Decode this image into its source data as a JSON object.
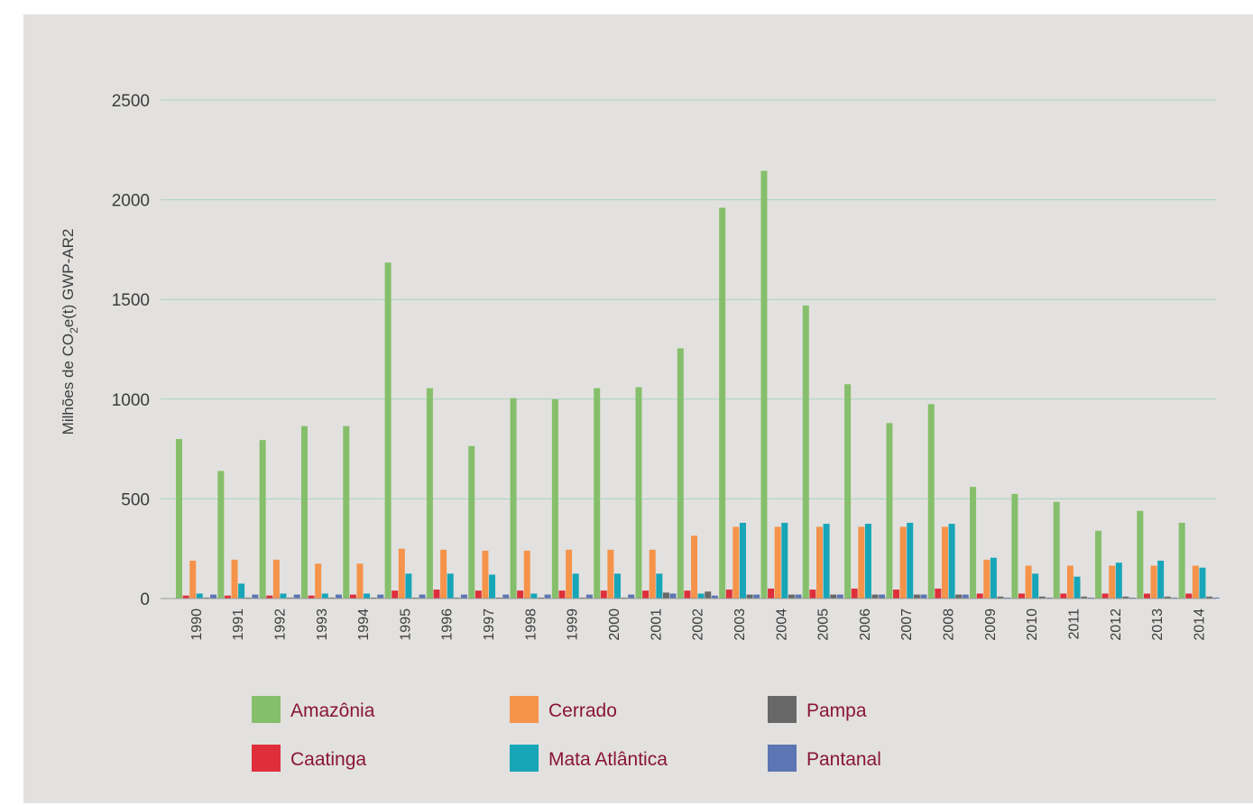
{
  "chart_data": {
    "type": "bar",
    "title": "",
    "ylabel": {
      "prefix": "Milhões de CO",
      "subscript": "2",
      "suffix": "e(t) GWP-AR2"
    },
    "xlabel": "",
    "ylim": [
      0,
      2500
    ],
    "yticks": [
      0,
      500,
      1000,
      1500,
      2000,
      2500
    ],
    "grid": true,
    "legend_position": "bottom",
    "categories": [
      "1990",
      "1991",
      "1992",
      "1993",
      "1994",
      "1995",
      "1996",
      "1997",
      "1998",
      "1999",
      "2000",
      "2001",
      "2002",
      "2003",
      "2004",
      "2005",
      "2006",
      "2007",
      "2008",
      "2009",
      "2010",
      "2011",
      "2012",
      "2013",
      "2014"
    ],
    "series": [
      {
        "name": "Amazônia",
        "color": "#86bf6b",
        "values": [
          800,
          640,
          795,
          865,
          865,
          1685,
          1055,
          765,
          1005,
          1000,
          1055,
          1060,
          1255,
          1960,
          2145,
          1470,
          1075,
          880,
          975,
          560,
          525,
          485,
          340,
          440,
          380
        ]
      },
      {
        "name": "Caatinga",
        "color": "#de2f3b",
        "values": [
          15,
          15,
          15,
          15,
          20,
          40,
          45,
          40,
          40,
          40,
          40,
          40,
          40,
          45,
          50,
          45,
          50,
          45,
          50,
          25,
          25,
          25,
          25,
          25,
          25
        ]
      },
      {
        "name": "Cerrado",
        "color": "#f5934a",
        "values": [
          190,
          195,
          195,
          175,
          175,
          250,
          245,
          240,
          240,
          245,
          245,
          245,
          315,
          360,
          360,
          360,
          360,
          360,
          360,
          195,
          165,
          165,
          165,
          165,
          165
        ]
      },
      {
        "name": "Mata Atlântica",
        "color": "#17a5b8",
        "values": [
          25,
          75,
          25,
          25,
          25,
          125,
          125,
          120,
          25,
          125,
          125,
          125,
          25,
          380,
          380,
          375,
          375,
          380,
          375,
          205,
          125,
          110,
          180,
          190,
          155
        ]
      },
      {
        "name": "Pampa",
        "color": "#686868",
        "values": [
          5,
          5,
          5,
          5,
          5,
          5,
          5,
          5,
          5,
          5,
          5,
          30,
          35,
          20,
          20,
          20,
          20,
          20,
          20,
          10,
          10,
          10,
          10,
          10,
          10
        ]
      },
      {
        "name": "Pantanal",
        "color": "#5c75b3",
        "values": [
          20,
          20,
          20,
          20,
          20,
          20,
          20,
          20,
          20,
          20,
          20,
          25,
          15,
          20,
          20,
          20,
          20,
          20,
          20,
          5,
          5,
          5,
          5,
          5,
          5
        ]
      }
    ],
    "legend": [
      "Amazônia",
      "Cerrado",
      "Pampa",
      "Caatinga",
      "Mata Atlântica",
      "Pantanal"
    ]
  }
}
